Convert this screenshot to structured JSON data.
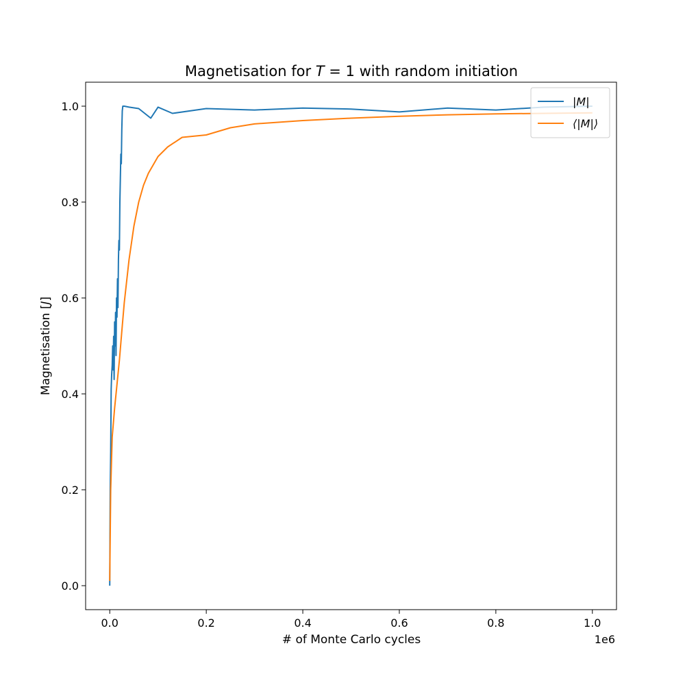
{
  "chart_data": {
    "type": "line",
    "title_prefix": "Magnetisation for ",
    "title_math_var": "T",
    "title_math_rest": " = 1",
    "title_suffix": " with random initiation",
    "xlabel": "# of Monte Carlo cycles",
    "ylabel_prefix": "Magnetisation [",
    "ylabel_var": "J",
    "ylabel_suffix": "]",
    "x_offset_text": "1e6",
    "x_scale": 1000000,
    "xlim": [
      -50000,
      1050000
    ],
    "ylim": [
      -0.05,
      1.05
    ],
    "xticks": [
      0,
      200000,
      400000,
      600000,
      800000,
      1000000
    ],
    "xtick_labels": [
      "0.0",
      "0.2",
      "0.4",
      "0.6",
      "0.8",
      "1.0"
    ],
    "yticks": [
      0.0,
      0.2,
      0.4,
      0.6,
      0.8,
      1.0
    ],
    "ytick_labels": [
      "0.0",
      "0.2",
      "0.4",
      "0.6",
      "0.8",
      "1.0"
    ],
    "grid": false,
    "legend_position": "top-right",
    "series": [
      {
        "name": "|M|",
        "color": "#1f77b4",
        "x": [
          0,
          1000,
          2000,
          3000,
          4000,
          5000,
          6000,
          7000,
          8000,
          9000,
          10000,
          11000,
          12000,
          13000,
          14000,
          15000,
          16000,
          17000,
          18000,
          19000,
          20000,
          21000,
          22000,
          23000,
          24000,
          25000,
          26000,
          27000,
          28000,
          30000,
          40000,
          60000,
          85000,
          100000,
          130000,
          200000,
          300000,
          400000,
          500000,
          600000,
          700000,
          800000,
          900000,
          1000000
        ],
        "y": [
          0.0,
          0.2,
          0.28,
          0.41,
          0.44,
          0.46,
          0.5,
          0.45,
          0.52,
          0.43,
          0.55,
          0.5,
          0.57,
          0.48,
          0.6,
          0.56,
          0.64,
          0.58,
          0.68,
          0.72,
          0.7,
          0.8,
          0.85,
          0.9,
          0.88,
          0.95,
          0.99,
          1.0,
          1.0,
          1.0,
          0.998,
          0.995,
          0.975,
          0.998,
          0.985,
          0.995,
          0.992,
          0.996,
          0.994,
          0.988,
          0.996,
          0.992,
          0.998,
          1.0
        ]
      },
      {
        "name": "⟨|M|⟩",
        "color": "#ff7f0e",
        "x": [
          0,
          2000,
          5000,
          10000,
          15000,
          20000,
          25000,
          30000,
          40000,
          50000,
          60000,
          70000,
          80000,
          100000,
          120000,
          150000,
          200000,
          250000,
          300000,
          400000,
          500000,
          600000,
          700000,
          800000,
          900000,
          1000000
        ],
        "y": [
          0.01,
          0.2,
          0.31,
          0.37,
          0.42,
          0.47,
          0.53,
          0.59,
          0.68,
          0.75,
          0.8,
          0.835,
          0.86,
          0.895,
          0.915,
          0.935,
          0.94,
          0.955,
          0.963,
          0.97,
          0.975,
          0.979,
          0.982,
          0.984,
          0.985,
          0.986
        ]
      }
    ],
    "legend_labels": [
      "|M|",
      "⟨|M|⟩"
    ]
  }
}
